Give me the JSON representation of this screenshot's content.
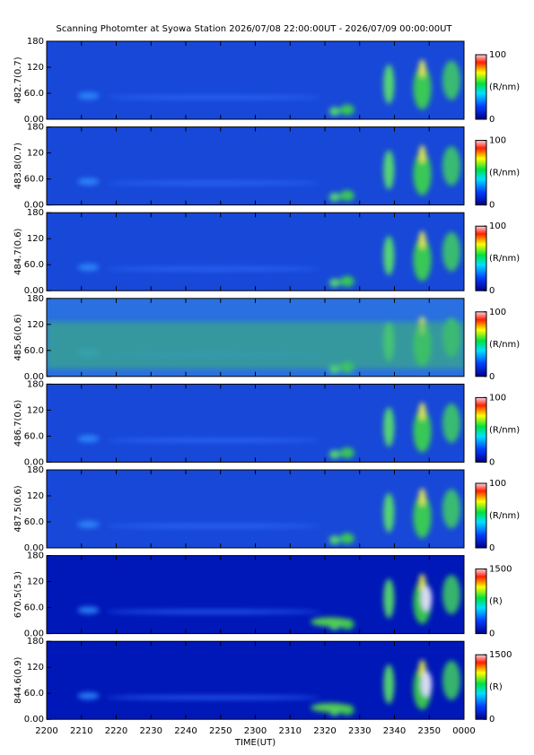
{
  "chart_data": [
    {
      "type": "heatmap",
      "title": "Scanning Photomter at Syowa Station 2026/07/08 22:00:00UT - 2026/07/09 00:00:00UT",
      "ylabel": "482.7(0.7)",
      "xlim": [
        0,
        120
      ],
      "xticks": [
        {
          "value": 0,
          "label": "2200"
        },
        {
          "value": 10,
          "label": "2210"
        },
        {
          "value": 20,
          "label": "2220"
        },
        {
          "value": 30,
          "label": "2230"
        },
        {
          "value": 40,
          "label": "2240"
        },
        {
          "value": 50,
          "label": "2250"
        },
        {
          "value": 60,
          "label": "2300"
        },
        {
          "value": 70,
          "label": "2310"
        },
        {
          "value": 80,
          "label": "2320"
        },
        {
          "value": 90,
          "label": "2330"
        },
        {
          "value": 100,
          "label": "2340"
        },
        {
          "value": 110,
          "label": "2350"
        },
        {
          "value": 120,
          "label": "0000"
        }
      ],
      "ylim": [
        0,
        180
      ],
      "yticks": [
        {
          "value": 0,
          "label": "0.00"
        },
        {
          "value": 60,
          "label": "60.0"
        },
        120,
        180
      ],
      "clim": [
        0,
        100
      ],
      "cticks": [
        0,
        100
      ],
      "colorbar_label": "(R/nm)"
    },
    {
      "type": "heatmap",
      "ylabel": "483.8(0.7)",
      "xlim": [
        0,
        120
      ],
      "xticks": [
        {
          "value": 0,
          "label": "2200"
        },
        {
          "value": 10,
          "label": "2210"
        },
        {
          "value": 20,
          "label": "2220"
        },
        {
          "value": 30,
          "label": "2230"
        },
        {
          "value": 40,
          "label": "2240"
        },
        {
          "value": 50,
          "label": "2250"
        },
        {
          "value": 60,
          "label": "2300"
        },
        {
          "value": 70,
          "label": "2310"
        },
        {
          "value": 80,
          "label": "2320"
        },
        {
          "value": 90,
          "label": "2330"
        },
        {
          "value": 100,
          "label": "2340"
        },
        {
          "value": 110,
          "label": "2350"
        },
        {
          "value": 120,
          "label": "0000"
        }
      ],
      "ylim": [
        0,
        180
      ],
      "yticks": [
        {
          "value": 0,
          "label": "0.00"
        },
        {
          "value": 60,
          "label": "60.0"
        },
        120,
        180
      ],
      "clim": [
        0,
        100
      ],
      "cticks": [
        0,
        100
      ],
      "colorbar_label": "(R/nm)"
    },
    {
      "type": "heatmap",
      "ylabel": "484.7(0.6)",
      "xlim": [
        0,
        120
      ],
      "xticks": [
        {
          "value": 0,
          "label": "2200"
        },
        {
          "value": 10,
          "label": "2210"
        },
        {
          "value": 20,
          "label": "2220"
        },
        {
          "value": 30,
          "label": "2230"
        },
        {
          "value": 40,
          "label": "2240"
        },
        {
          "value": 50,
          "label": "2250"
        },
        {
          "value": 60,
          "label": "2300"
        },
        {
          "value": 70,
          "label": "2310"
        },
        {
          "value": 80,
          "label": "2320"
        },
        {
          "value": 90,
          "label": "2330"
        },
        {
          "value": 100,
          "label": "2340"
        },
        {
          "value": 110,
          "label": "2350"
        },
        {
          "value": 120,
          "label": "0000"
        }
      ],
      "ylim": [
        0,
        180
      ],
      "yticks": [
        {
          "value": 0,
          "label": "0.00"
        },
        {
          "value": 60,
          "label": "60.0"
        },
        120,
        180
      ],
      "clim": [
        0,
        100
      ],
      "cticks": [
        0,
        100
      ],
      "colorbar_label": "(R/nm)"
    },
    {
      "type": "heatmap",
      "ylabel": "485.6(0.6)",
      "xlim": [
        0,
        120
      ],
      "xticks": [
        {
          "value": 0,
          "label": "2200"
        },
        {
          "value": 10,
          "label": "2210"
        },
        {
          "value": 20,
          "label": "2220"
        },
        {
          "value": 30,
          "label": "2230"
        },
        {
          "value": 40,
          "label": "2240"
        },
        {
          "value": 50,
          "label": "2250"
        },
        {
          "value": 60,
          "label": "2300"
        },
        {
          "value": 70,
          "label": "2310"
        },
        {
          "value": 80,
          "label": "2320"
        },
        {
          "value": 90,
          "label": "2330"
        },
        {
          "value": 100,
          "label": "2340"
        },
        {
          "value": 110,
          "label": "2350"
        },
        {
          "value": 120,
          "label": "0000"
        }
      ],
      "ylim": [
        0,
        180
      ],
      "yticks": [
        {
          "value": 0,
          "label": "0.00"
        },
        {
          "value": 60,
          "label": "60.0"
        },
        120,
        180
      ],
      "clim": [
        0,
        100
      ],
      "cticks": [
        0,
        100
      ],
      "colorbar_label": "(R/nm)"
    },
    {
      "type": "heatmap",
      "ylabel": "486.7(0.6)",
      "xlim": [
        0,
        120
      ],
      "xticks": [
        {
          "value": 0,
          "label": "2200"
        },
        {
          "value": 10,
          "label": "2210"
        },
        {
          "value": 20,
          "label": "2220"
        },
        {
          "value": 30,
          "label": "2230"
        },
        {
          "value": 40,
          "label": "2240"
        },
        {
          "value": 50,
          "label": "2250"
        },
        {
          "value": 60,
          "label": "2300"
        },
        {
          "value": 70,
          "label": "2310"
        },
        {
          "value": 80,
          "label": "2320"
        },
        {
          "value": 90,
          "label": "2330"
        },
        {
          "value": 100,
          "label": "2340"
        },
        {
          "value": 110,
          "label": "2350"
        },
        {
          "value": 120,
          "label": "0000"
        }
      ],
      "ylim": [
        0,
        180
      ],
      "yticks": [
        {
          "value": 0,
          "label": "0.00"
        },
        {
          "value": 60,
          "label": "60.0"
        },
        120,
        180
      ],
      "clim": [
        0,
        100
      ],
      "cticks": [
        0,
        100
      ],
      "colorbar_label": "(R/nm)"
    },
    {
      "type": "heatmap",
      "ylabel": "487.5(0.6)",
      "xlim": [
        0,
        120
      ],
      "xticks": [
        {
          "value": 0,
          "label": "2200"
        },
        {
          "value": 10,
          "label": "2210"
        },
        {
          "value": 20,
          "label": "2220"
        },
        {
          "value": 30,
          "label": "2230"
        },
        {
          "value": 40,
          "label": "2240"
        },
        {
          "value": 50,
          "label": "2250"
        },
        {
          "value": 60,
          "label": "2300"
        },
        {
          "value": 70,
          "label": "2310"
        },
        {
          "value": 80,
          "label": "2320"
        },
        {
          "value": 90,
          "label": "2330"
        },
        {
          "value": 100,
          "label": "2340"
        },
        {
          "value": 110,
          "label": "2350"
        },
        {
          "value": 120,
          "label": "0000"
        }
      ],
      "ylim": [
        0,
        180
      ],
      "yticks": [
        {
          "value": 0,
          "label": "0.00"
        },
        {
          "value": 60,
          "label": "60.0"
        },
        120,
        180
      ],
      "clim": [
        0,
        100
      ],
      "cticks": [
        0,
        100
      ],
      "colorbar_label": "(R/nm)"
    },
    {
      "type": "heatmap",
      "ylabel": "670.5(5.3)",
      "xlim": [
        0,
        120
      ],
      "xticks": [
        {
          "value": 0,
          "label": "2200"
        },
        {
          "value": 10,
          "label": "2210"
        },
        {
          "value": 20,
          "label": "2220"
        },
        {
          "value": 30,
          "label": "2230"
        },
        {
          "value": 40,
          "label": "2240"
        },
        {
          "value": 50,
          "label": "2250"
        },
        {
          "value": 60,
          "label": "2300"
        },
        {
          "value": 70,
          "label": "2310"
        },
        {
          "value": 80,
          "label": "2320"
        },
        {
          "value": 90,
          "label": "2330"
        },
        {
          "value": 100,
          "label": "2340"
        },
        {
          "value": 110,
          "label": "2350"
        },
        {
          "value": 120,
          "label": "0000"
        }
      ],
      "ylim": [
        0,
        180
      ],
      "yticks": [
        {
          "value": 0,
          "label": "0.00"
        },
        {
          "value": 60,
          "label": "60.0"
        },
        120,
        180
      ],
      "clim": [
        0,
        1500
      ],
      "cticks": [
        0,
        1500
      ],
      "colorbar_label": "(R)"
    },
    {
      "type": "heatmap",
      "ylabel": "844.6(0.9)",
      "xlabel": "TIME(UT)",
      "xlim": [
        0,
        120
      ],
      "xticks": [
        {
          "value": 0,
          "label": "2200"
        },
        {
          "value": 10,
          "label": "2210"
        },
        {
          "value": 20,
          "label": "2220"
        },
        {
          "value": 30,
          "label": "2230"
        },
        {
          "value": 40,
          "label": "2240"
        },
        {
          "value": 50,
          "label": "2250"
        },
        {
          "value": 60,
          "label": "2300"
        },
        {
          "value": 70,
          "label": "2310"
        },
        {
          "value": 80,
          "label": "2320"
        },
        {
          "value": 90,
          "label": "2330"
        },
        {
          "value": 100,
          "label": "2340"
        },
        {
          "value": 110,
          "label": "2350"
        },
        {
          "value": 120,
          "label": "0000"
        }
      ],
      "ylim": [
        0,
        180
      ],
      "yticks": [
        {
          "value": 0,
          "label": "0.00"
        },
        {
          "value": 60,
          "label": "60.0"
        },
        120,
        180
      ],
      "clim": [
        0,
        1500
      ],
      "cticks": [
        0,
        1500
      ],
      "colorbar_label": "(R)"
    }
  ]
}
